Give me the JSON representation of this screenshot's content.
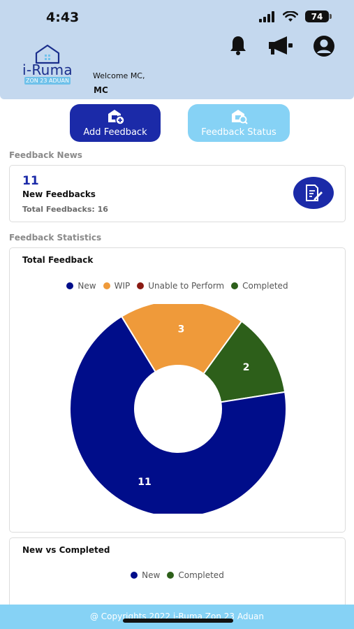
{
  "status_bar": {
    "time": "4:43",
    "battery": "74"
  },
  "header": {
    "logo_text": "i-Ruma",
    "logo_subtext": "ZON 23 ADUAN",
    "welcome_text": "Welcome MC,",
    "user_name": "MC",
    "icons": [
      "bell-icon",
      "megaphone-icon",
      "account-icon"
    ]
  },
  "actions": {
    "add_feedback": "Add Feedback",
    "feedback_status": "Feedback Status"
  },
  "feedback_news": {
    "section_title": "Feedback News",
    "new_count": "11",
    "new_label": "New Feedbacks",
    "total_label": "Total Feedbacks: 16"
  },
  "feedback_statistics": {
    "section_title": "Feedback Statistics",
    "total_card_title": "Total Feedback",
    "new_vs_completed_title": "New vs Completed"
  },
  "chart_data": [
    {
      "type": "pie",
      "title": "Total Feedback",
      "categories": [
        "New",
        "WIP",
        "Unable to Perform",
        "Completed"
      ],
      "values": [
        11,
        3,
        0,
        2
      ],
      "colors": [
        "#000d8a",
        "#ef9a3a",
        "#8a1a12",
        "#2d5f1a"
      ],
      "legend": "top"
    },
    {
      "type": "pie",
      "title": "New vs Completed",
      "categories": [
        "New",
        "Completed"
      ],
      "colors": [
        "#000d8a",
        "#2d5f1a"
      ],
      "legend": "top"
    }
  ],
  "footer": {
    "text": "@ Copyrights 2022 i-Ruma Zon 23 Aduan"
  }
}
